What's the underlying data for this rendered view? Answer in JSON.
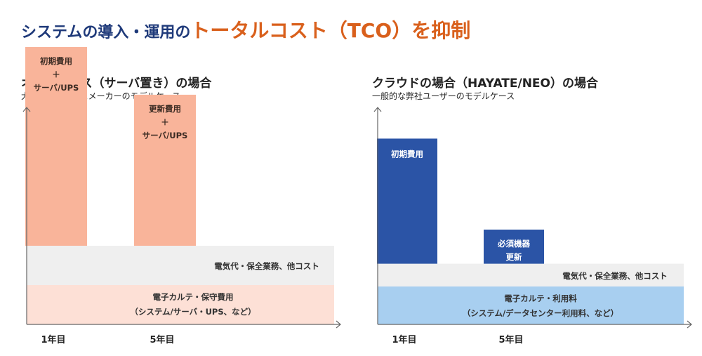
{
  "headline": {
    "prefix": "システムの導入・運用の",
    "accent": "トータルコスト（TCO）を抑制"
  },
  "colors": {
    "headline_blue": "#1f3a7a",
    "accent_orange": "#d9601c",
    "onprem_bar": "#f9b49a",
    "onprem_base": "#fde0d6",
    "cloud_bar": "#2b54a6",
    "cloud_base": "#a8cff0",
    "running_cost": "#efefef"
  },
  "chart_data": [
    {
      "type": "bar",
      "title": "オンプレミス（サーバ置き）の場合",
      "subtitle": "大手オンプレミスメーカーのモデルケース",
      "categories": [
        "1年目",
        "5年目"
      ],
      "layers": [
        {
          "name": "電子カルテ・保守費用",
          "detail": "（システム/サーバ・UPS、など）",
          "level": 1
        },
        {
          "name": "電気代・保全業務、他コスト",
          "level": 2
        }
      ],
      "spikes": [
        {
          "category": "1年目",
          "lines": [
            "初期費用",
            "＋",
            "サーバ/UPS"
          ],
          "level": 7
        },
        {
          "category": "5年目",
          "lines": [
            "更新費用",
            "＋",
            "サーバ/UPS"
          ],
          "level": 5.8
        }
      ]
    },
    {
      "type": "bar",
      "title": "クラウドの場合（HAYATE/NEO）の場合",
      "subtitle": "一般的な弊社ユーザーのモデルケース",
      "categories": [
        "1年目",
        "5年目"
      ],
      "layers": [
        {
          "name": "電子カルテ・利用料",
          "detail": "（システム/データセンター利用料、など）",
          "level": 1
        },
        {
          "name": "電気代・保全業務、他コスト",
          "level": 1.6
        }
      ],
      "spikes": [
        {
          "category": "1年目",
          "lines": [
            "初期費用"
          ],
          "level": 4.9
        },
        {
          "category": "5年目",
          "lines": [
            "必須機器",
            "更新"
          ],
          "level": 2.5
        }
      ]
    }
  ]
}
